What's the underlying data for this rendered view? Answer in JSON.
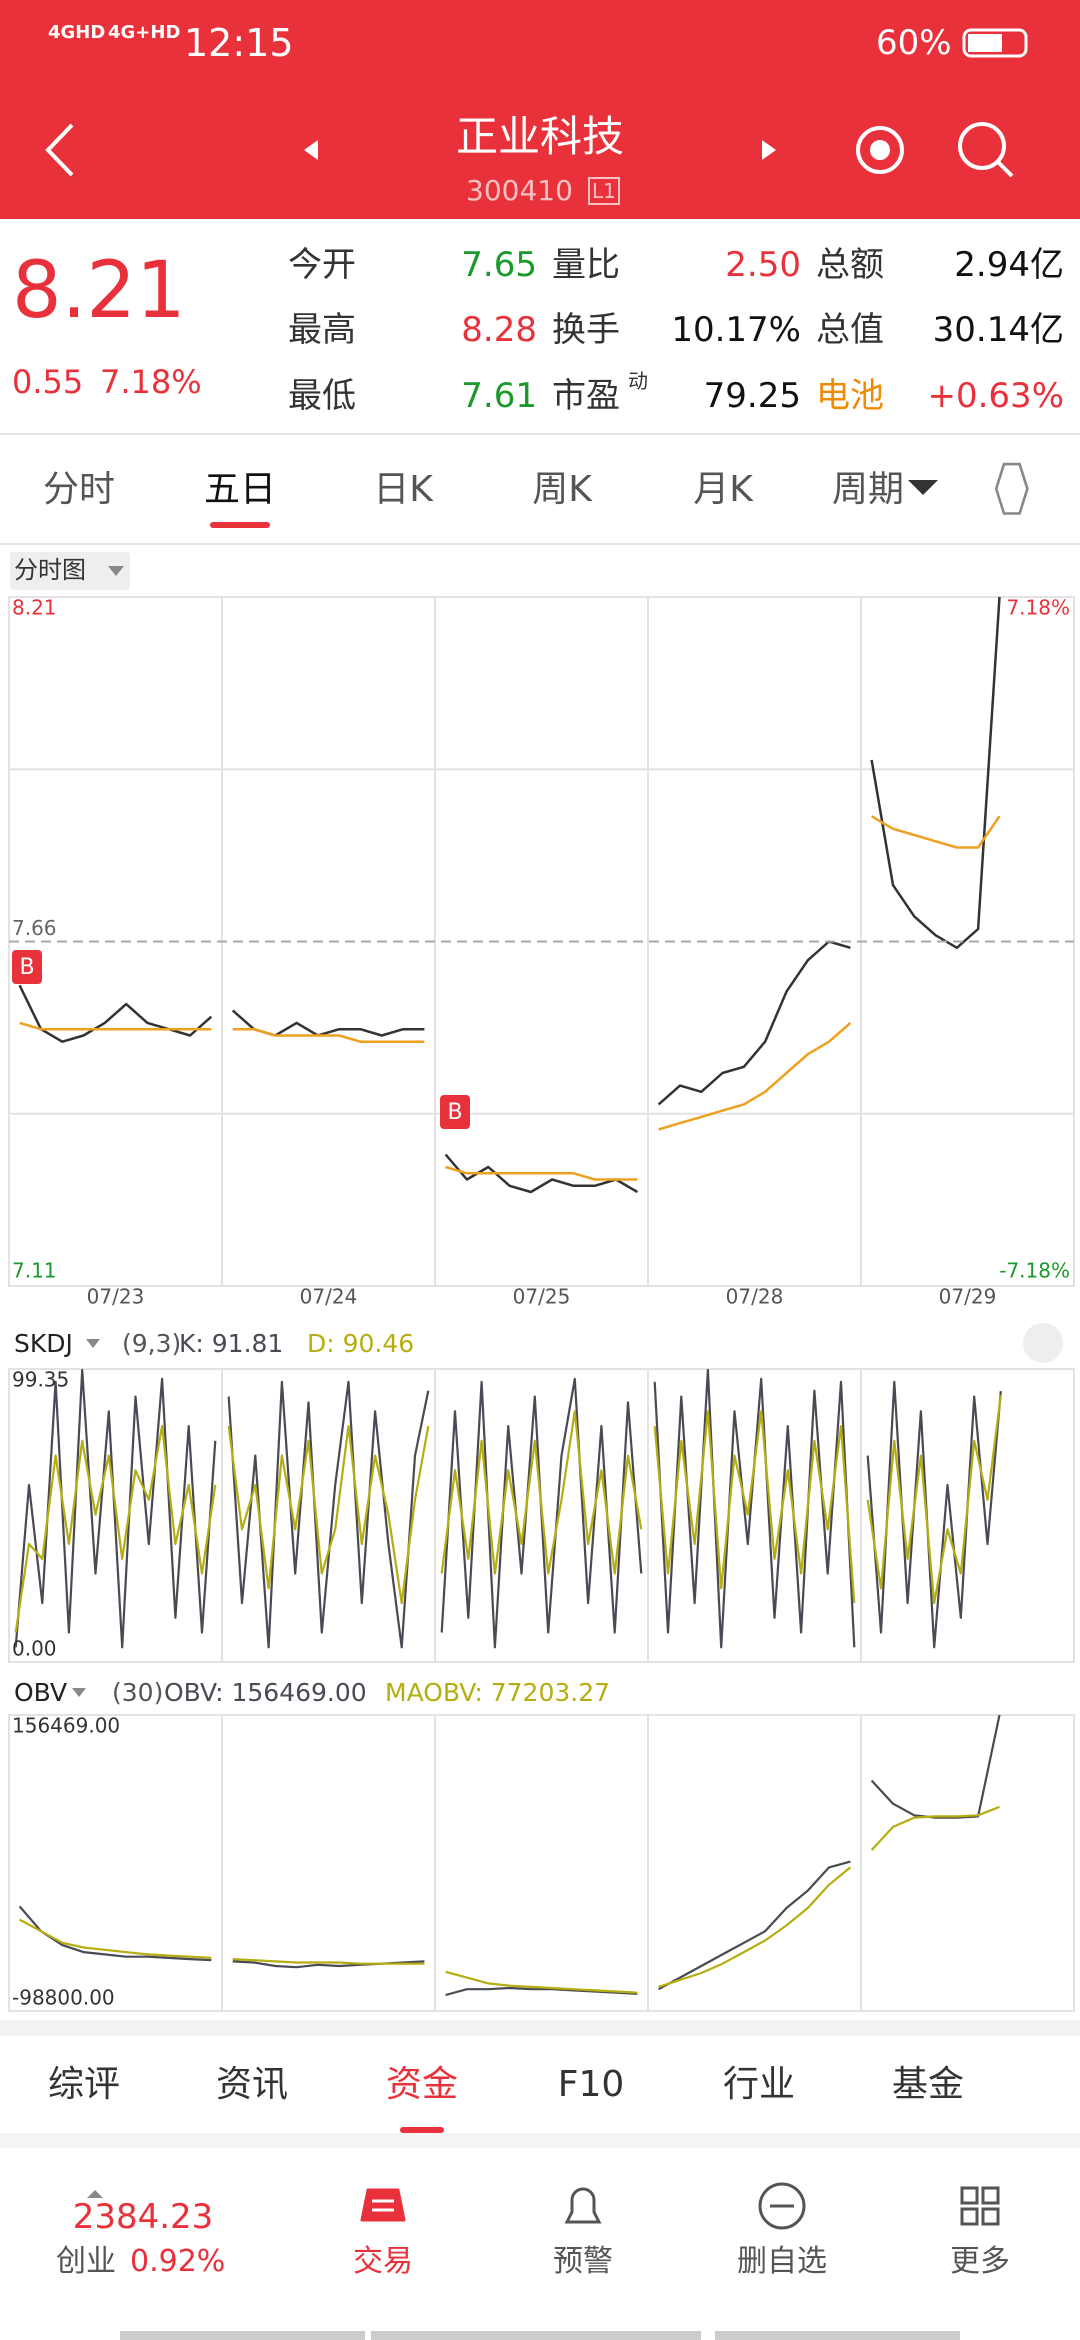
{
  "status_bar": {
    "network1": "4GHD",
    "network2": "4G+HD",
    "time": "12:15",
    "battery": "60%"
  },
  "header": {
    "title": "正业科技",
    "code": "300410",
    "level": "L1"
  },
  "quote": {
    "price": "8.21",
    "change": "0.55",
    "change_pct": "7.18%",
    "stats": [
      [
        {
          "label": "今开",
          "value": "7.65",
          "color": "#1a9a2b"
        },
        {
          "label": "量比",
          "value": "2.50",
          "color": "#e8313a"
        },
        {
          "label": "总额",
          "value": "2.94亿",
          "color": "#111111"
        }
      ],
      [
        {
          "label": "最高",
          "value": "8.28",
          "color": "#e8313a"
        },
        {
          "label": "换手",
          "value": "10.17%",
          "color": "#111111"
        },
        {
          "label": "总值",
          "value": "30.14亿",
          "color": "#111111"
        }
      ],
      [
        {
          "label": "最低",
          "value": "7.61",
          "color": "#1a9a2b"
        },
        {
          "label": "市盈",
          "label_sup": "动",
          "value": "79.25",
          "color": "#111111"
        },
        {
          "label": "电池",
          "label_color": "#f08a00",
          "value": "+0.63%",
          "color": "#e8313a"
        }
      ]
    ]
  },
  "tabs": {
    "items": [
      "分时",
      "五日",
      "日K",
      "周K",
      "月K",
      "周期"
    ],
    "active": 1
  },
  "main_chart": {
    "mode_label": "分时图",
    "ylim": [
      7.11,
      8.21
    ],
    "ref_price": 7.66,
    "top_pct": "7.18%",
    "bottom_pct": "-7.18%",
    "buy_marker": "B",
    "dates": [
      "07/23",
      "07/24",
      "07/25",
      "07/28",
      "07/29"
    ],
    "price": [
      [
        7.59,
        7.52,
        7.5,
        7.51,
        7.53,
        7.56,
        7.53,
        7.52,
        7.51,
        7.54
      ],
      [
        7.55,
        7.52,
        7.51,
        7.53,
        7.51,
        7.52,
        7.52,
        7.51,
        7.52,
        7.52
      ],
      [
        7.32,
        7.28,
        7.3,
        7.27,
        7.26,
        7.28,
        7.27,
        7.27,
        7.28,
        7.26
      ],
      [
        7.4,
        7.43,
        7.42,
        7.45,
        7.46,
        7.5,
        7.58,
        7.63,
        7.66,
        7.65
      ],
      [
        7.95,
        7.75,
        7.7,
        7.67,
        7.65,
        7.68,
        8.21
      ]
    ],
    "price_color": "#333333",
    "avg": [
      [
        7.53,
        7.52,
        7.52,
        7.52,
        7.52,
        7.52,
        7.52,
        7.52,
        7.52,
        7.52
      ],
      [
        7.52,
        7.52,
        7.51,
        7.51,
        7.51,
        7.51,
        7.5,
        7.5,
        7.5,
        7.5
      ],
      [
        7.3,
        7.29,
        7.29,
        7.29,
        7.29,
        7.29,
        7.29,
        7.28,
        7.28,
        7.28
      ],
      [
        7.36,
        7.37,
        7.38,
        7.39,
        7.4,
        7.42,
        7.45,
        7.48,
        7.5,
        7.53
      ],
      [
        7.86,
        7.84,
        7.83,
        7.82,
        7.81,
        7.81,
        7.86
      ]
    ],
    "avg_color": "#f0a020"
  },
  "skdj": {
    "name": "SKDJ",
    "params": "(9,3)",
    "k_text": "K: 91.81",
    "d_text": "D: 90.46",
    "ylim": [
      0,
      99.35
    ],
    "yticks": [
      {
        "value": 0,
        "label": "0.00"
      },
      99.35
    ],
    "k_color": "#4a4a55",
    "d_color": "#b5ae10",
    "k": [
      [
        5,
        60,
        20,
        95,
        10,
        99,
        30,
        85,
        5,
        90,
        40,
        96,
        15,
        80,
        10,
        75
      ],
      [
        90,
        20,
        70,
        5,
        95,
        30,
        88,
        10,
        60,
        95,
        20,
        85,
        40,
        5,
        70,
        92
      ],
      [
        10,
        85,
        15,
        95,
        5,
        80,
        30,
        90,
        10,
        70,
        96,
        20,
        80,
        10,
        88,
        30
      ],
      [
        95,
        10,
        90,
        20,
        99,
        5,
        85,
        40,
        96,
        15,
        80,
        10,
        92,
        30,
        95,
        5
      ],
      [
        70,
        10,
        95,
        20,
        85,
        5,
        60,
        15,
        90,
        40,
        91.81
      ]
    ],
    "d": [
      [
        10,
        40,
        35,
        70,
        40,
        75,
        50,
        70,
        35,
        65,
        55,
        80,
        40,
        60,
        30,
        60
      ],
      [
        80,
        45,
        60,
        25,
        70,
        45,
        75,
        30,
        45,
        80,
        40,
        70,
        50,
        20,
        55,
        80
      ],
      [
        30,
        65,
        35,
        75,
        30,
        65,
        40,
        75,
        30,
        55,
        85,
        40,
        65,
        30,
        70,
        45
      ],
      [
        80,
        30,
        75,
        40,
        85,
        25,
        70,
        50,
        85,
        35,
        65,
        30,
        75,
        45,
        80,
        20
      ],
      [
        55,
        25,
        75,
        35,
        70,
        20,
        45,
        30,
        75,
        55,
        90.46
      ]
    ]
  },
  "obv": {
    "name": "OBV",
    "params": "(30)",
    "obv_text": "OBV: 156469.00",
    "maobv_text": "MAOBV: 77203.27",
    "ylim": [
      -98800,
      156469
    ],
    "yticks": [
      {
        "value": 156469,
        "label": "156469.00"
      },
      {
        "value": -98800,
        "label": "-98800.00"
      }
    ],
    "obv_color": "#4a4a55",
    "maobv_color": "#b5ae10",
    "obv": [
      [
        -8553,
        -30000,
        -42000,
        -48000,
        -50000,
        -52000,
        -52000,
        -53000,
        -54000,
        -55000
      ],
      [
        -56000,
        -57000,
        -60000,
        -61000,
        -59000,
        -60000,
        -59000,
        -58000,
        -57000,
        -56000
      ],
      [
        -85000,
        -80000,
        -80000,
        -79000,
        -80000,
        -80000,
        -81000,
        -82000,
        -83000,
        -84000
      ],
      [
        -80000,
        -70000,
        -60000,
        -50000,
        -40000,
        -30000,
        -10000,
        5000,
        25000,
        30000
      ],
      [
        100000,
        80000,
        70000,
        68000,
        68000,
        69000,
        156469
      ]
    ],
    "maobv": [
      [
        -20000,
        -30000,
        -40000,
        -44000,
        -46000,
        -48000,
        -50000,
        -51000,
        -52000,
        -53000
      ],
      [
        -54000,
        -55000,
        -56000,
        -57000,
        -57000,
        -57000,
        -58000,
        -58000,
        -58000,
        -58000
      ],
      [
        -65000,
        -70000,
        -75000,
        -77000,
        -78000,
        -79000,
        -80000,
        -81000,
        -82000,
        -83000
      ],
      [
        -78000,
        -72000,
        -66000,
        -58000,
        -48000,
        -38000,
        -25000,
        -10000,
        10000,
        25000
      ],
      [
        40000,
        60000,
        68000,
        69000,
        69000,
        70000,
        77203.27
      ]
    ]
  },
  "bottom_tabs": {
    "items": [
      "综评",
      "资讯",
      "资金",
      "F10",
      "行业",
      "基金"
    ],
    "active": 2
  },
  "bottom_nav": {
    "index_value": "2384.23",
    "index_name": "创业",
    "index_change": "0.92%",
    "items": [
      "交易",
      "预警",
      "删自选",
      "更多"
    ]
  }
}
